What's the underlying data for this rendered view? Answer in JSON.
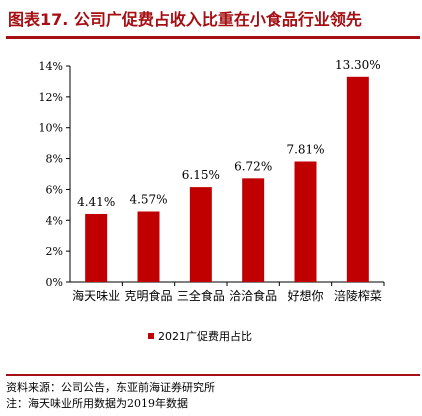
{
  "header": {
    "title": "图表17. 公司广促费占收入比重在小食品行业领先"
  },
  "chart_data": {
    "type": "bar",
    "categories": [
      "海天味业",
      "克明食品",
      "三全食品",
      "洽洽食品",
      "好想你",
      "涪陵榨菜"
    ],
    "series": [
      {
        "name": "2021广促费用占比",
        "values": [
          4.41,
          4.57,
          6.15,
          6.72,
          7.81,
          13.3
        ]
      }
    ],
    "data_labels": [
      "4.41%",
      "4.57%",
      "6.15%",
      "6.72%",
      "7.81%",
      "13.30%"
    ],
    "y_ticks": [
      "0%",
      "2%",
      "4%",
      "6%",
      "8%",
      "10%",
      "12%",
      "14%"
    ],
    "ylim": [
      0,
      14
    ],
    "grid": false,
    "legend_position": "bottom",
    "bar_color": "#c00000"
  },
  "footer": {
    "source": "资料来源：公司公告，东亚前海证券研究所",
    "note": "注：海天味业所用数据为2019年数据"
  },
  "colors": {
    "title": "#a50e12",
    "bar": "#c00000"
  }
}
